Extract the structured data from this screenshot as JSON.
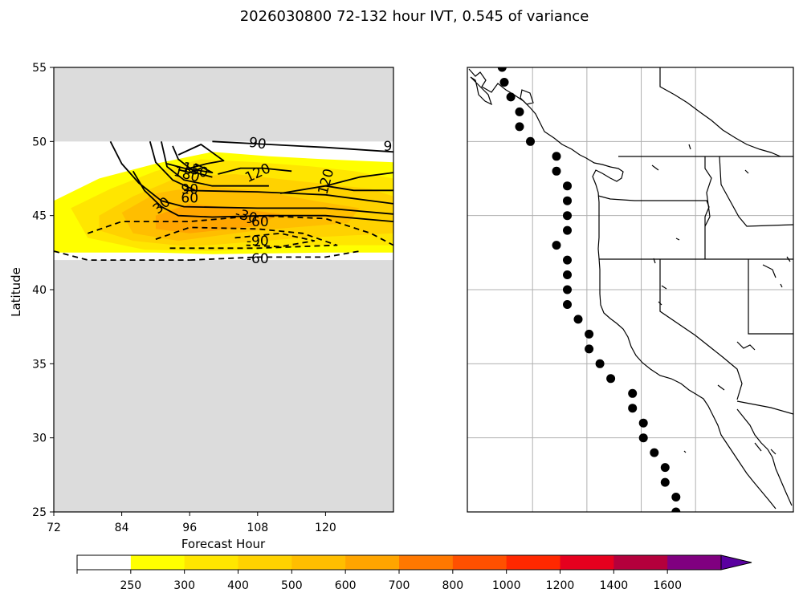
{
  "title": "2026030800 72-132 hour IVT, 0.545 of variance",
  "colors": {
    "missing": "#dcdcdc",
    "levels": [
      "#ffffff",
      "#ffff00",
      "#ffe600",
      "#ffd200",
      "#ffbe00",
      "#ffa500",
      "#ff7800",
      "#ff5000",
      "#ff2800",
      "#e6001e",
      "#b4003c",
      "#800080",
      "#5a00a0"
    ]
  },
  "chart_data": [
    {
      "type": "contour",
      "name": "ivt-hovmoller",
      "xlabel": "Forecast Hour",
      "ylabel": "Latitude",
      "xlim": [
        72,
        132
      ],
      "ylim": [
        25,
        55
      ],
      "xticks": [
        72,
        84,
        96,
        108,
        120
      ],
      "yticks": [
        25,
        30,
        35,
        40,
        45,
        50,
        55
      ],
      "data_lat_range": [
        42,
        50
      ],
      "filled_regions": [
        {
          "level": 250,
          "points": [
            [
              72,
              46
            ],
            [
              80,
              47.5
            ],
            [
              90,
              48.5
            ],
            [
              100,
              49.3
            ],
            [
              110,
              49
            ],
            [
              120,
              48.8
            ],
            [
              132,
              48.6
            ],
            [
              132,
              42.5
            ],
            [
              120,
              42.5
            ],
            [
              100,
              42.4
            ],
            [
              90,
              42.5
            ],
            [
              80,
              42.5
            ],
            [
              72,
              42.5
            ]
          ]
        },
        {
          "level": 300,
          "points": [
            [
              75,
              45.5
            ],
            [
              82,
              46.8
            ],
            [
              90,
              48
            ],
            [
              98,
              48.8
            ],
            [
              108,
              48.6
            ],
            [
              118,
              48.3
            ],
            [
              125,
              48
            ],
            [
              132,
              47.5
            ],
            [
              132,
              43
            ],
            [
              120,
              43
            ],
            [
              100,
              42.6
            ],
            [
              88,
              42.7
            ],
            [
              78,
              43.5
            ]
          ]
        },
        {
          "level": 400,
          "points": [
            [
              80,
              45
            ],
            [
              86,
              46.3
            ],
            [
              94,
              47.6
            ],
            [
              104,
              47.8
            ],
            [
              116,
              47.3
            ],
            [
              128,
              46.8
            ],
            [
              132,
              46.3
            ],
            [
              132,
              43.8
            ],
            [
              116,
              43.5
            ],
            [
              96,
              42.9
            ],
            [
              86,
              43.3
            ],
            [
              80,
              44
            ]
          ]
        },
        {
          "level": 500,
          "points": [
            [
              84,
              45.2
            ],
            [
              90,
              46.5
            ],
            [
              98,
              47
            ],
            [
              108,
              46.7
            ],
            [
              118,
              46
            ],
            [
              126,
              45.5
            ],
            [
              124,
              44.5
            ],
            [
              108,
              44
            ],
            [
              94,
              43.3
            ],
            [
              86,
              43.8
            ]
          ]
        },
        {
          "level": 600,
          "points": [
            [
              90,
              45
            ],
            [
              96,
              45.8
            ],
            [
              104,
              45.5
            ],
            [
              112,
              45.1
            ],
            [
              108,
              44.3
            ],
            [
              96,
              43.8
            ],
            [
              90,
              44.1
            ]
          ]
        }
      ],
      "contours": [
        {
          "value": 90,
          "dashed": false,
          "points": [
            [
              100,
              50
            ],
            [
              110,
              49.8
            ],
            [
              120,
              49.6
            ],
            [
              132,
              49.3
            ]
          ]
        },
        {
          "value": 90,
          "dashed": false,
          "points": [
            [
              120,
              47
            ],
            [
              126,
              47.6
            ],
            [
              132,
              47.9
            ]
          ]
        },
        {
          "value": 120,
          "dashed": false,
          "points": [
            [
              101,
              47.8
            ],
            [
              105,
              48.2
            ],
            [
              109,
              48.2
            ],
            [
              114,
              48
            ]
          ]
        },
        {
          "value": 120,
          "dashed": false,
          "points": [
            [
              112,
              46.5
            ],
            [
              120,
              47
            ],
            [
              125,
              46.7
            ],
            [
              132,
              46.7
            ]
          ]
        },
        {
          "value": 60,
          "dashed": false,
          "points": [
            [
              94,
              49.1
            ],
            [
              98,
              49.8
            ],
            [
              102,
              48.7
            ],
            [
              99,
              48.5
            ],
            [
              96,
              48.2
            ]
          ]
        },
        {
          "value": 60,
          "dashed": false,
          "points": [
            [
              95,
              46.7
            ],
            [
              108,
              46.6
            ],
            [
              120,
              46.4
            ],
            [
              132,
              45.8
            ]
          ]
        },
        {
          "value": 30,
          "dashed": false,
          "points": [
            [
              86,
              48
            ],
            [
              88,
              46.7
            ],
            [
              91,
              45.6
            ],
            [
              94,
              45
            ],
            [
              100,
              44.9
            ],
            [
              110,
              45
            ],
            [
              120,
              45
            ],
            [
              132,
              44.6
            ]
          ]
        },
        {
          "value": 150,
          "dashed": false,
          "points": [
            [
              92,
              48.5
            ],
            [
              95,
              48.2
            ],
            [
              100,
              47.9
            ],
            [
              97,
              48.5
            ]
          ]
        },
        {
          "value": 180,
          "dashed": false,
          "points": [
            [
              94,
              48.1
            ],
            [
              96,
              47.9
            ],
            [
              98,
              48.2
            ]
          ]
        },
        {
          "value": 60,
          "dashed": false,
          "points": [
            [
              89,
              50
            ],
            [
              90,
              48.6
            ],
            [
              93,
              47.4
            ],
            [
              97,
              46.7
            ]
          ]
        },
        {
          "value": 90,
          "dashed": false,
          "points": [
            [
              91,
              50
            ],
            [
              92,
              48.3
            ],
            [
              95,
              47.4
            ],
            [
              100,
              47
            ],
            [
              110,
              47
            ]
          ]
        },
        {
          "value": 120,
          "dashed": false,
          "points": [
            [
              93,
              49.7
            ],
            [
              94,
              48.8
            ],
            [
              97,
              47.9
            ],
            [
              100,
              47.6
            ]
          ]
        },
        {
          "value": 30,
          "dashed": false,
          "points": [
            [
              82,
              50
            ],
            [
              84,
              48.5
            ],
            [
              87,
              47.2
            ],
            [
              91,
              46
            ],
            [
              95,
              45.6
            ],
            [
              108,
              45.5
            ],
            [
              120,
              45.5
            ],
            [
              132,
              45.1
            ]
          ]
        },
        {
          "value": -30,
          "dashed": true,
          "points": [
            [
              78,
              43.8
            ],
            [
              84,
              44.6
            ],
            [
              96,
              44.6
            ],
            [
              108,
              45
            ],
            [
              120,
              44.8
            ],
            [
              128,
              43.8
            ],
            [
              132,
              43
            ]
          ]
        },
        {
          "value": -60,
          "dashed": true,
          "points": [
            [
              90,
              43.4
            ],
            [
              96,
              44.2
            ],
            [
              108,
              44.1
            ],
            [
              116,
              43.8
            ],
            [
              122,
              43
            ],
            [
              108,
              42.8
            ],
            [
              92,
              42.8
            ]
          ]
        },
        {
          "value": -90,
          "dashed": true,
          "points": [
            [
              104,
              43.5
            ],
            [
              112,
              43.8
            ],
            [
              118,
              43.3
            ],
            [
              112,
              42.9
            ],
            [
              106,
              43
            ]
          ]
        },
        {
          "value": -60,
          "dashed": true,
          "points": [
            [
              72,
              42.6
            ],
            [
              78,
              42
            ],
            [
              96,
              42
            ]
          ]
        },
        {
          "value": -60,
          "dashed": true,
          "points": [
            [
              96,
              42
            ],
            [
              108,
              42.2
            ],
            [
              120,
              42.2
            ],
            [
              126,
              42.6
            ]
          ]
        }
      ],
      "contour_labels": [
        {
          "text": "90",
          "x": 108,
          "y": 49.9,
          "angle": 8
        },
        {
          "text": "9",
          "x": 131,
          "y": 49.7,
          "angle": 0
        },
        {
          "text": "120",
          "x": 108,
          "y": 47.9,
          "angle": -25
        },
        {
          "text": "120",
          "x": 120,
          "y": 47.3,
          "angle": -75
        },
        {
          "text": "150",
          "x": 97,
          "y": 48.1,
          "angle": 15
        },
        {
          "text": "180",
          "x": 95.5,
          "y": 47.8,
          "angle": 15
        },
        {
          "text": "90",
          "x": 96,
          "y": 46.8,
          "angle": 0
        },
        {
          "text": "60",
          "x": 96,
          "y": 46.2,
          "angle": 0
        },
        {
          "text": "30",
          "x": 91,
          "y": 45.7,
          "angle": -40
        },
        {
          "text": "-30",
          "x": 106,
          "y": 45,
          "angle": 15
        },
        {
          "text": "-60",
          "x": 108,
          "y": 44.6,
          "angle": 0
        },
        {
          "text": "-90",
          "x": 108,
          "y": 43.3,
          "angle": 0
        },
        {
          "text": "-60",
          "x": 108,
          "y": 42.1,
          "angle": 0
        }
      ]
    },
    {
      "type": "scatter",
      "name": "coast-points-map",
      "lon_range": [
        -131,
        -116
      ],
      "lat_range": [
        25,
        55
      ],
      "grid_lons": [
        -128,
        -125.5,
        -123,
        -120.5
      ],
      "grid_lats": [
        30,
        35,
        40,
        45,
        50
      ],
      "points": [
        [
          -129.4,
          55
        ],
        [
          -129.3,
          54
        ],
        [
          -129.0,
          53
        ],
        [
          -128.6,
          52
        ],
        [
          -128.6,
          51
        ],
        [
          -128.1,
          50
        ],
        [
          -126.9,
          49
        ],
        [
          -126.9,
          48
        ],
        [
          -126.4,
          47
        ],
        [
          -126.4,
          46
        ],
        [
          -126.4,
          45
        ],
        [
          -126.4,
          44
        ],
        [
          -126.9,
          43
        ],
        [
          -126.4,
          42
        ],
        [
          -126.4,
          41
        ],
        [
          -126.4,
          40
        ],
        [
          -126.4,
          39
        ],
        [
          -125.9,
          38
        ],
        [
          -125.4,
          37
        ],
        [
          -125.4,
          36
        ],
        [
          -124.9,
          35
        ],
        [
          -124.4,
          34
        ],
        [
          -123.4,
          33
        ],
        [
          -123.4,
          32
        ],
        [
          -122.9,
          31
        ],
        [
          -122.9,
          30
        ],
        [
          -122.4,
          29
        ],
        [
          -121.9,
          28
        ],
        [
          -121.9,
          27
        ],
        [
          -121.4,
          26
        ],
        [
          -121.4,
          25
        ]
      ]
    },
    {
      "type": "colorbar",
      "name": "ivt-colorbar",
      "boundaries": [
        250,
        300,
        400,
        500,
        600,
        700,
        800,
        1000,
        1200,
        1400,
        1600
      ],
      "tick_labels": [
        "250",
        "300",
        "400",
        "500",
        "600",
        "700",
        "800",
        "1000",
        "1200",
        "1400",
        "1600"
      ],
      "extend": "max"
    }
  ]
}
